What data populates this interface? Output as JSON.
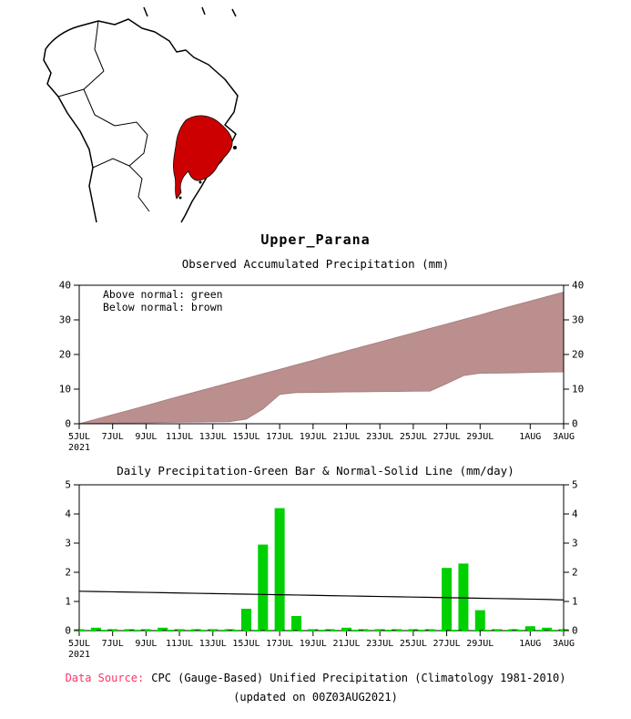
{
  "page": {
    "title": "Upper_Parana",
    "map": {
      "highlight_color": "#cc0000",
      "outline_color": "#000000"
    },
    "footer": {
      "source_label": "Data Source:",
      "source_label_color": "#ff3366",
      "source_text": "CPC (Gauge-Based) Unified Precipitation (Climatology 1981-2010)",
      "updated_text": "(updated on 00Z03AUG2021)"
    }
  },
  "chart_data": [
    {
      "type": "area",
      "title": "Observed Accumulated Precipitation (mm)",
      "legend": [
        "Above normal: green",
        "Below normal: brown"
      ],
      "ylim": [
        0,
        40
      ],
      "yticks": [
        0,
        10,
        20,
        30,
        40
      ],
      "x_tick_labels": [
        "5JUL",
        "7JUL",
        "9JUL",
        "11JUL",
        "13JUL",
        "15JUL",
        "17JUL",
        "19JUL",
        "21JUL",
        "23JUL",
        "25JUL",
        "27JUL",
        "29JUL",
        "1AUG",
        "3AUG"
      ],
      "x_tick_positions": [
        0,
        2,
        4,
        6,
        8,
        10,
        12,
        14,
        16,
        18,
        20,
        22,
        24,
        27,
        29
      ],
      "x_sub_label": "2021",
      "fill_color": "#bc8f8f",
      "edge_color": "#a88080",
      "series": [
        {
          "name": "normal_accumulated",
          "values": [
            0,
            1.3,
            2.6,
            3.9,
            5.2,
            6.6,
            7.9,
            9.2,
            10.5,
            11.8,
            13.1,
            14.4,
            15.7,
            17,
            18.3,
            19.7,
            21,
            22.3,
            23.6,
            24.9,
            26.2,
            27.5,
            28.8,
            30.1,
            31.4,
            32.8,
            34.1,
            35.4,
            36.7,
            38
          ]
        },
        {
          "name": "observed_accumulated",
          "values": [
            0,
            0.1,
            0.2,
            0.25,
            0.3,
            0.4,
            0.45,
            0.5,
            0.55,
            0.6,
            1.35,
            4.3,
            8.5,
            9,
            9.05,
            9.1,
            9.2,
            9.25,
            9.3,
            9.35,
            9.4,
            9.45,
            11.6,
            13.9,
            14.6,
            14.65,
            14.7,
            14.85,
            14.95,
            15
          ]
        }
      ]
    },
    {
      "type": "bar",
      "title": "Daily Precipitation-Green Bar & Normal-Solid Line (mm/day)",
      "ylim": [
        0,
        5
      ],
      "yticks": [
        0,
        1,
        2,
        3,
        4,
        5
      ],
      "x_tick_labels": [
        "5JUL",
        "7JUL",
        "9JUL",
        "11JUL",
        "13JUL",
        "15JUL",
        "17JUL",
        "19JUL",
        "21JUL",
        "23JUL",
        "25JUL",
        "27JUL",
        "29JUL",
        "1AUG",
        "3AUG"
      ],
      "x_tick_positions": [
        0,
        2,
        4,
        6,
        8,
        10,
        12,
        14,
        16,
        18,
        20,
        22,
        24,
        27,
        29
      ],
      "x_sub_label": "2021",
      "dates": [
        "5JUL",
        "6JUL",
        "7JUL",
        "8JUL",
        "9JUL",
        "10JUL",
        "11JUL",
        "12JUL",
        "13JUL",
        "14JUL",
        "15JUL",
        "16JUL",
        "17JUL",
        "18JUL",
        "19JUL",
        "20JUL",
        "21JUL",
        "22JUL",
        "23JUL",
        "24JUL",
        "25JUL",
        "26JUL",
        "27JUL",
        "28JUL",
        "29JUL",
        "30JUL",
        "31JUL",
        "1AUG",
        "2AUG",
        "3AUG"
      ],
      "bar_values": [
        0.05,
        0.1,
        0.05,
        0.05,
        0.05,
        0.1,
        0.05,
        0.05,
        0.05,
        0.05,
        0.75,
        2.95,
        4.2,
        0.5,
        0.05,
        0.05,
        0.1,
        0.05,
        0.05,
        0.05,
        0.05,
        0.05,
        2.15,
        2.3,
        0.7,
        0.05,
        0.05,
        0.15,
        0.1,
        0.05
      ],
      "bar_color": "#00d000",
      "line_color": "#000000",
      "normal_line_values": [
        1.35,
        1.34,
        1.33,
        1.32,
        1.31,
        1.3,
        1.29,
        1.28,
        1.27,
        1.26,
        1.25,
        1.24,
        1.23,
        1.22,
        1.21,
        1.2,
        1.19,
        1.18,
        1.17,
        1.16,
        1.15,
        1.14,
        1.13,
        1.12,
        1.11,
        1.1,
        1.09,
        1.08,
        1.07,
        1.05
      ]
    }
  ]
}
